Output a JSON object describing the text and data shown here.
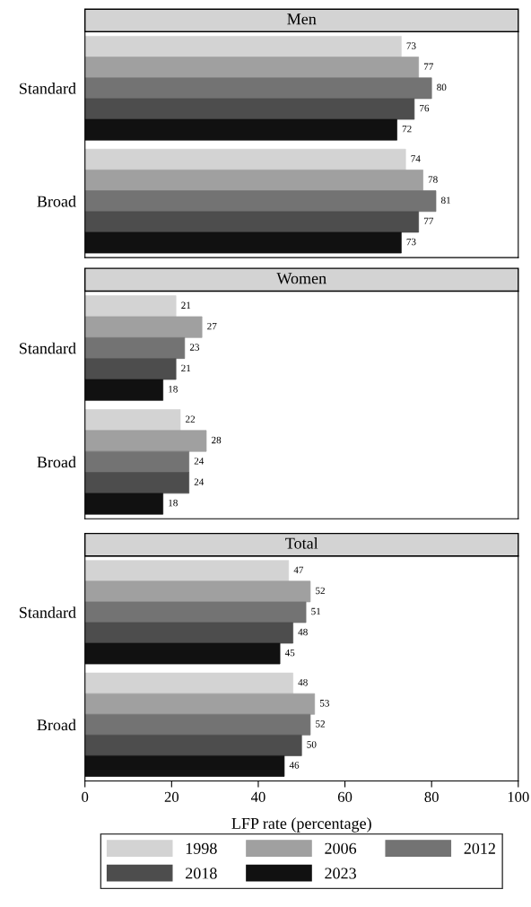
{
  "chart_data": [
    {
      "type": "bar",
      "orientation": "horizontal",
      "title": "Men",
      "categories": [
        "Standard",
        "Broad"
      ],
      "xlim": [
        0,
        100
      ],
      "xticks": [
        0,
        20,
        40,
        60,
        80,
        100
      ],
      "tick_labels": "y",
      "data_labels": true,
      "legend": false,
      "grid": false,
      "series": [
        {
          "color": "#d3d3d3",
          "values": [
            73,
            74
          ]
        },
        {
          "color": "#a0a0a0",
          "values": [
            77,
            78
          ]
        },
        {
          "color": "#737373",
          "values": [
            80,
            81
          ]
        },
        {
          "color": "#4d4d4d",
          "values": [
            76,
            77
          ]
        },
        {
          "color": "#111111",
          "values": [
            72,
            73
          ]
        }
      ]
    },
    {
      "type": "bar",
      "orientation": "horizontal",
      "title": "Women",
      "categories": [
        "Standard",
        "Broad"
      ],
      "xlim": [
        0,
        100
      ],
      "xticks": [
        0,
        20,
        40,
        60,
        80,
        100
      ],
      "tick_labels": "y",
      "data_labels": true,
      "legend": false,
      "grid": false,
      "series": [
        {
          "color": "#d3d3d3",
          "values": [
            21,
            22
          ]
        },
        {
          "color": "#a0a0a0",
          "values": [
            27,
            28
          ]
        },
        {
          "color": "#737373",
          "values": [
            23,
            24
          ]
        },
        {
          "color": "#4d4d4d",
          "values": [
            21,
            24
          ]
        },
        {
          "color": "#111111",
          "values": [
            18,
            18
          ]
        }
      ]
    },
    {
      "type": "bar",
      "orientation": "horizontal",
      "title": "Total",
      "xlabel": "LFP rate (percentage)",
      "categories": [
        "Standard",
        "Broad"
      ],
      "xlim": [
        0,
        100
      ],
      "xticks": [
        0,
        20,
        40,
        60,
        80,
        100
      ],
      "data_labels": true,
      "legend": "bottom",
      "grid": false,
      "series": [
        {
          "name": "1998",
          "color": "#d3d3d3",
          "values": [
            47,
            48
          ]
        },
        {
          "name": "2006",
          "color": "#a0a0a0",
          "values": [
            52,
            53
          ]
        },
        {
          "name": "2012",
          "color": "#737373",
          "values": [
            51,
            52
          ]
        },
        {
          "name": "2018",
          "color": "#4d4d4d",
          "values": [
            48,
            50
          ]
        },
        {
          "name": "2023",
          "color": "#111111",
          "values": [
            45,
            46
          ]
        }
      ]
    }
  ]
}
